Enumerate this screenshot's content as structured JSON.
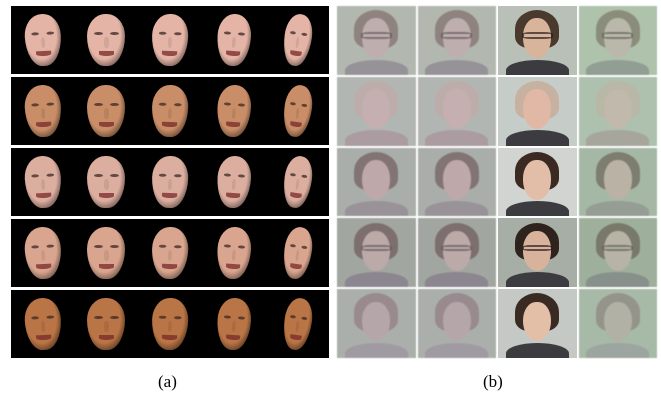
{
  "captions": {
    "a": "(a)",
    "b": "(b)"
  },
  "panel_a": {
    "rows": [
      {
        "skin": "#e4b4a6"
      },
      {
        "skin": "#c98e68"
      },
      {
        "skin": "#dcaea0"
      },
      {
        "skin": "#d9a58f"
      },
      {
        "skin": "#b97545"
      }
    ],
    "poses": [
      "turn1",
      "turn2",
      "turn3",
      "turn4",
      "turn5"
    ]
  },
  "panel_b": {
    "rows": [
      {
        "bg": "#a7b7a4",
        "hair": "#6f6657",
        "skin": "#b9a8a0",
        "shirt": "#7b7f7e",
        "glasses": true,
        "sharp_bg": "#b9c0b7",
        "sharp_skin": "#d8b49b",
        "sharp_hair": "#4a3a2e"
      },
      {
        "bg": "#a6b4a7",
        "hair": "#b7a79a",
        "skin": "#c4a9a4",
        "shirt": "#9a8d8d",
        "glasses": false,
        "sharp_bg": "#c6ccc8",
        "sharp_skin": "#e0b8a5",
        "sharp_hair": "#c7b1a0"
      },
      {
        "bg": "#98a89a",
        "hair": "#5d4f47",
        "skin": "#b99f98",
        "shirt": "#807f80",
        "glasses": false,
        "sharp_bg": "#d2d4d2",
        "sharp_skin": "#e2bea8",
        "sharp_hair": "#3b2a22"
      },
      {
        "bg": "#8e9c8b",
        "hair": "#54473d",
        "skin": "#b5a199",
        "shirt": "#6b6a70",
        "glasses": true,
        "sharp_bg": "#a6aea6",
        "sharp_skin": "#d9b29b",
        "sharp_hair": "#2e241d"
      },
      {
        "bg": "#9caa9c",
        "hair": "#7e7070",
        "skin": "#ab9d98",
        "shirt": "#8a8b8f",
        "glasses": false,
        "sharp_bg": "#c4c9c5",
        "sharp_skin": "#e4bfa8",
        "sharp_hair": "#3a2a24"
      }
    ],
    "sharp_column": 2
  }
}
